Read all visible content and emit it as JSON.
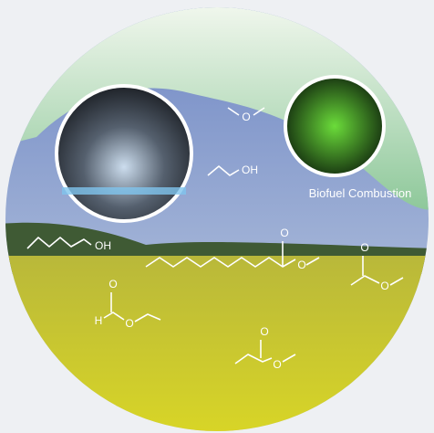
{
  "caption": "Biofuel Combustion",
  "molecules": [
    {
      "atoms": [
        "O"
      ]
    },
    {
      "atoms": [
        "OH"
      ]
    },
    {
      "atoms": [
        "OH"
      ]
    },
    {
      "atoms": [
        "O",
        "O"
      ]
    },
    {
      "atoms": [
        "O",
        "O"
      ]
    },
    {
      "atoms": [
        "H",
        "O",
        "O"
      ]
    },
    {
      "atoms": [
        "O",
        "O"
      ]
    }
  ]
}
